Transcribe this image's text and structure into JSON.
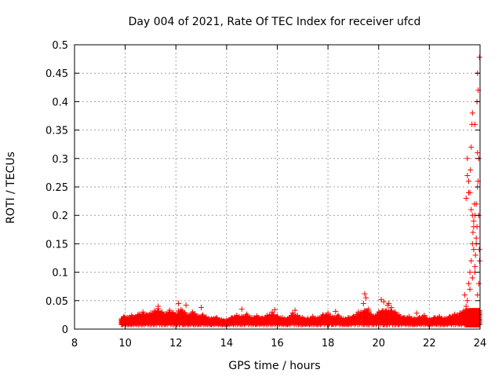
{
  "chart_data": {
    "type": "scatter",
    "title": "Day 004 of 2021, Rate Of TEC Index for receiver ufcd",
    "xlabel": "GPS time / hours",
    "ylabel": "ROTI / TECUs",
    "xlim": [
      8,
      24
    ],
    "ylim": [
      0,
      0.5
    ],
    "xticks": [
      "8",
      "10",
      "12",
      "14",
      "16",
      "18",
      "20",
      "22",
      "24"
    ],
    "yticks": [
      "0",
      "0.05",
      "0.1",
      "0.15",
      "0.2",
      "0.25",
      "0.3",
      "0.35",
      "0.4",
      "0.45",
      "0.5"
    ],
    "grid": true,
    "marker": "+",
    "color": "#ff0000",
    "series": [
      {
        "x": [
          9.85,
          9.95,
          10.1,
          10.25,
          10.4,
          10.55,
          10.7,
          10.85,
          11.0,
          11.15,
          11.3,
          11.45,
          11.6,
          11.75,
          11.9,
          12.05,
          12.2,
          12.35,
          12.5,
          12.65,
          12.75,
          12.9,
          13.05,
          13.2,
          13.4,
          13.6,
          13.8,
          14.0,
          14.2,
          14.4,
          14.6,
          14.8,
          15.0,
          15.2,
          15.4,
          15.6,
          15.8,
          16.0,
          16.2,
          16.4,
          16.6,
          16.8,
          17.0,
          17.2,
          17.4,
          17.6,
          17.8,
          18.0,
          18.2,
          18.4,
          18.6,
          18.8,
          19.0,
          19.2,
          19.4,
          19.5,
          19.6,
          19.8,
          20.0,
          20.2,
          20.35,
          20.5,
          20.65,
          20.8,
          21.0,
          21.2,
          21.4,
          21.6,
          21.8,
          22.0,
          22.2,
          22.4,
          22.6,
          22.8,
          23.0,
          23.2,
          23.35,
          23.45,
          23.5,
          23.55,
          23.6,
          23.65,
          23.7,
          23.75,
          23.8,
          23.85,
          23.9,
          23.95,
          11.3,
          12.1,
          12.4,
          13.0,
          14.6,
          15.9,
          16.7,
          18.3,
          19.45,
          20.1,
          20.4,
          21.5,
          23.4,
          23.5,
          23.55,
          23.6,
          23.62,
          23.65,
          23.68,
          23.7,
          23.72,
          23.75,
          23.78,
          23.8,
          23.82,
          23.85,
          23.88,
          23.9,
          23.92,
          23.95,
          23.97,
          23.98,
          23.6,
          23.7,
          23.8,
          23.9,
          23.95,
          23.85,
          23.75,
          23.65,
          23.55,
          23.5,
          23.45,
          23.88,
          23.93,
          23.7,
          23.8,
          23.9,
          23.98,
          10.5,
          11.8,
          13.5,
          15.2,
          17.2,
          19.0,
          20.8,
          22.5,
          10.0,
          12.6,
          14.2,
          16.3,
          18.7,
          20.6,
          22.9
        ],
        "y": [
          0.018,
          0.022,
          0.02,
          0.024,
          0.021,
          0.026,
          0.03,
          0.025,
          0.028,
          0.032,
          0.036,
          0.03,
          0.027,
          0.033,
          0.029,
          0.026,
          0.034,
          0.028,
          0.024,
          0.03,
          0.027,
          0.022,
          0.025,
          0.021,
          0.018,
          0.02,
          0.016,
          0.015,
          0.02,
          0.024,
          0.022,
          0.026,
          0.02,
          0.023,
          0.019,
          0.024,
          0.03,
          0.022,
          0.02,
          0.018,
          0.028,
          0.024,
          0.02,
          0.016,
          0.022,
          0.019,
          0.025,
          0.028,
          0.021,
          0.024,
          0.018,
          0.02,
          0.022,
          0.03,
          0.045,
          0.055,
          0.035,
          0.022,
          0.03,
          0.048,
          0.042,
          0.038,
          0.03,
          0.025,
          0.02,
          0.022,
          0.018,
          0.02,
          0.024,
          0.016,
          0.02,
          0.022,
          0.018,
          0.022,
          0.026,
          0.028,
          0.032,
          0.04,
          0.05,
          0.08,
          0.1,
          0.12,
          0.15,
          0.18,
          0.2,
          0.22,
          0.25,
          0.3,
          0.04,
          0.045,
          0.042,
          0.038,
          0.035,
          0.034,
          0.033,
          0.031,
          0.062,
          0.052,
          0.045,
          0.028,
          0.06,
          0.3,
          0.26,
          0.24,
          0.28,
          0.32,
          0.36,
          0.2,
          0.17,
          0.14,
          0.22,
          0.1,
          0.13,
          0.16,
          0.18,
          0.31,
          0.26,
          0.2,
          0.14,
          0.12,
          0.07,
          0.09,
          0.11,
          0.06,
          0.08,
          0.15,
          0.19,
          0.21,
          0.24,
          0.27,
          0.23,
          0.4,
          0.42,
          0.38,
          0.36,
          0.45,
          0.478,
          0.025,
          0.02,
          0.018,
          0.021,
          0.019,
          0.017,
          0.02,
          0.015,
          0.012,
          0.01,
          0.011,
          0.012,
          0.01,
          0.013,
          0.015
        ]
      }
    ]
  }
}
